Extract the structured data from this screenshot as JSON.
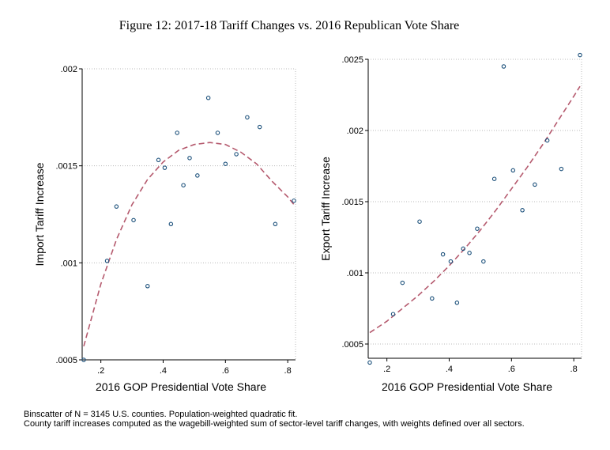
{
  "figure_title": "Figure 12: 2017-18 Tariff Changes vs. 2016 Republican Vote Share",
  "notes": [
    "Binscatter of N = 3145 U.S. counties. Population-weighted quadratic fit.",
    "County tariff increases computed as the wagebill-weighted sum of sector-level tariff changes, with weights defined over all sectors."
  ],
  "colors": {
    "points": "#1a4f7a",
    "fit": "#b55a6e",
    "grid": "#b8b8b8",
    "axis": "#000000"
  },
  "chart_data": [
    {
      "type": "scatter",
      "panel": "left",
      "title": "",
      "xlabel": "2016 GOP Presidential Vote Share",
      "ylabel": "Import Tariff Increase",
      "xlim": [
        0.14,
        0.825
      ],
      "ylim": [
        0.0005,
        0.002
      ],
      "xticks": [
        0.2,
        0.4,
        0.6,
        0.8
      ],
      "xtick_labels": [
        ".2",
        ".4",
        ".6",
        ".8"
      ],
      "yticks": [
        0.0005,
        0.001,
        0.0015,
        0.002
      ],
      "ytick_labels": [
        ".0005",
        ".001",
        ".0015",
        ".002"
      ],
      "grid": true,
      "points": [
        {
          "x": 0.145,
          "y": 0.0005
        },
        {
          "x": 0.22,
          "y": 0.00101
        },
        {
          "x": 0.25,
          "y": 0.00129
        },
        {
          "x": 0.305,
          "y": 0.00122
        },
        {
          "x": 0.35,
          "y": 0.00088
        },
        {
          "x": 0.385,
          "y": 0.00153
        },
        {
          "x": 0.405,
          "y": 0.00149
        },
        {
          "x": 0.425,
          "y": 0.0012
        },
        {
          "x": 0.445,
          "y": 0.00167
        },
        {
          "x": 0.465,
          "y": 0.0014
        },
        {
          "x": 0.485,
          "y": 0.00154
        },
        {
          "x": 0.51,
          "y": 0.00145
        },
        {
          "x": 0.545,
          "y": 0.00185
        },
        {
          "x": 0.575,
          "y": 0.00167
        },
        {
          "x": 0.6,
          "y": 0.00151
        },
        {
          "x": 0.635,
          "y": 0.00156
        },
        {
          "x": 0.67,
          "y": 0.00175
        },
        {
          "x": 0.71,
          "y": 0.0017
        },
        {
          "x": 0.76,
          "y": 0.0012
        },
        {
          "x": 0.82,
          "y": 0.00132
        }
      ],
      "fit_line": {
        "x": [
          0.145,
          0.2,
          0.25,
          0.3,
          0.35,
          0.4,
          0.45,
          0.5,
          0.55,
          0.6,
          0.65,
          0.7,
          0.75,
          0.8,
          0.82
        ],
        "y": [
          0.00057,
          0.00089,
          0.00112,
          0.0013,
          0.00143,
          0.00152,
          0.00158,
          0.00161,
          0.00162,
          0.00161,
          0.00157,
          0.00151,
          0.00142,
          0.00134,
          0.0013
        ]
      }
    },
    {
      "type": "scatter",
      "panel": "right",
      "title": "",
      "xlabel": "2016 GOP Presidential Vote Share",
      "ylabel": "Export Tariff Increase",
      "xlim": [
        0.14,
        0.825
      ],
      "ylim": [
        0.0004,
        0.0025
      ],
      "xticks": [
        0.2,
        0.4,
        0.6,
        0.8
      ],
      "xtick_labels": [
        ".2",
        ".4",
        ".6",
        ".8"
      ],
      "yticks": [
        0.0005,
        0.001,
        0.0015,
        0.002,
        0.0025
      ],
      "ytick_labels": [
        ".0005",
        ".001",
        ".0015",
        ".002",
        ".0025"
      ],
      "grid": true,
      "points": [
        {
          "x": 0.145,
          "y": 0.00037
        },
        {
          "x": 0.22,
          "y": 0.00071
        },
        {
          "x": 0.25,
          "y": 0.00093
        },
        {
          "x": 0.305,
          "y": 0.00136
        },
        {
          "x": 0.345,
          "y": 0.00082
        },
        {
          "x": 0.38,
          "y": 0.00113
        },
        {
          "x": 0.405,
          "y": 0.00108
        },
        {
          "x": 0.425,
          "y": 0.00079
        },
        {
          "x": 0.445,
          "y": 0.00117
        },
        {
          "x": 0.465,
          "y": 0.00114
        },
        {
          "x": 0.49,
          "y": 0.00131
        },
        {
          "x": 0.51,
          "y": 0.00108
        },
        {
          "x": 0.545,
          "y": 0.00166
        },
        {
          "x": 0.575,
          "y": 0.00245
        },
        {
          "x": 0.605,
          "y": 0.00172
        },
        {
          "x": 0.635,
          "y": 0.00144
        },
        {
          "x": 0.675,
          "y": 0.00162
        },
        {
          "x": 0.715,
          "y": 0.00193
        },
        {
          "x": 0.76,
          "y": 0.00173
        },
        {
          "x": 0.82,
          "y": 0.00253
        }
      ],
      "fit_line": {
        "x": [
          0.145,
          0.2,
          0.25,
          0.3,
          0.35,
          0.4,
          0.45,
          0.5,
          0.55,
          0.6,
          0.65,
          0.7,
          0.75,
          0.8,
          0.82
        ],
        "y": [
          0.00058,
          0.00066,
          0.00075,
          0.00084,
          0.00094,
          0.00105,
          0.00117,
          0.0013,
          0.00144,
          0.00159,
          0.00174,
          0.0019,
          0.00207,
          0.00224,
          0.00231
        ]
      }
    }
  ]
}
